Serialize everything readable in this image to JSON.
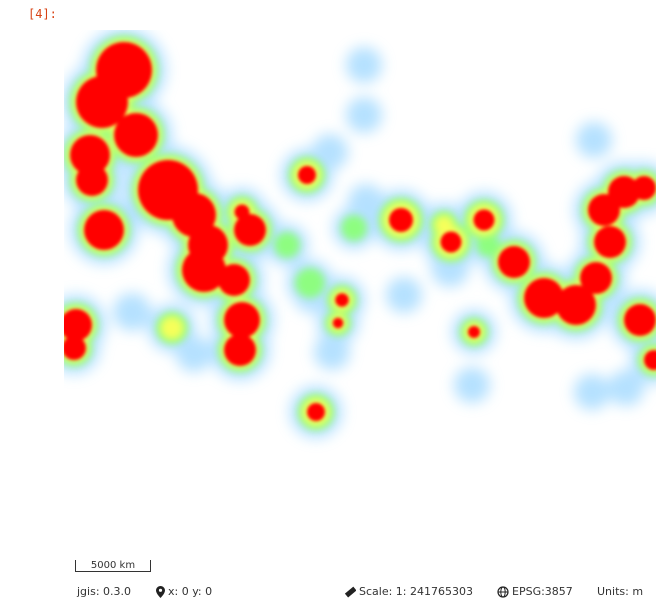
{
  "cell": {
    "prompt": "[4]:"
  },
  "map": {
    "layer_type": "heatmap",
    "colors": {
      "low": "#8fd0ff",
      "mid": "#7dff7d",
      "high": "#ff0000",
      "background": "#ffffff"
    }
  },
  "scale_bar": {
    "label": "5000 km"
  },
  "status": {
    "version": "jgis: 0.3.0",
    "coords": "x: 0 y: 0",
    "scale": "Scale: 1: 241765303",
    "crs": "EPSG:3857",
    "units": "Units: m"
  }
}
